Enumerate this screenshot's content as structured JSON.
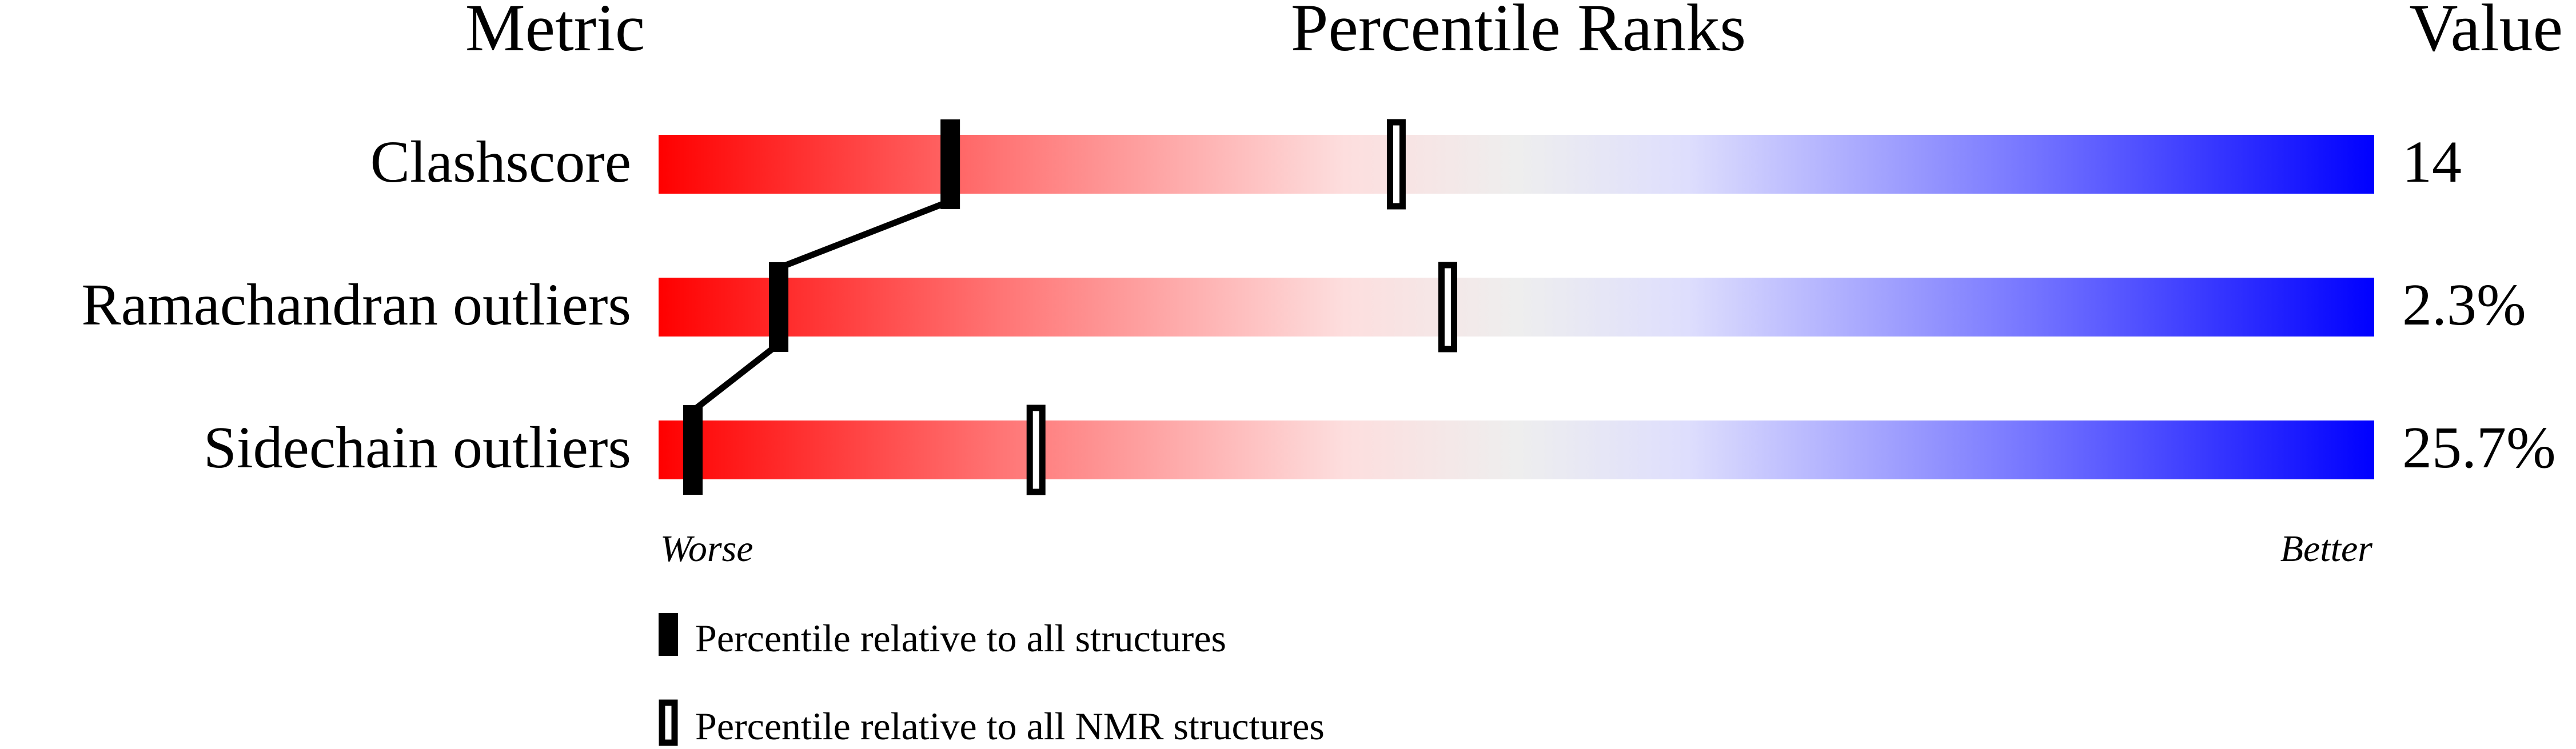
{
  "chart_data": {
    "type": "table",
    "headers": {
      "metric": "Metric",
      "ranks": "Percentile Ranks",
      "value": "Value"
    },
    "rows": [
      {
        "metric": "Clashscore",
        "value": "14",
        "percentile_all": 17,
        "percentile_nmr": 43
      },
      {
        "metric": "Ramachandran outliers",
        "value": "2.3%",
        "percentile_all": 7,
        "percentile_nmr": 46
      },
      {
        "metric": "Sidechain outliers",
        "value": "25.7%",
        "percentile_all": 2,
        "percentile_nmr": 22
      }
    ],
    "axis": {
      "min_label": "Worse",
      "max_label": "Better",
      "range": [
        0,
        100
      ]
    },
    "legend": {
      "all": "Percentile relative to all structures",
      "nmr": "Percentile relative to all NMR structures"
    },
    "colors": {
      "worse": "#ff0000",
      "middle": "#eeeeee",
      "better": "#0000ff",
      "marker": "#000000"
    }
  }
}
